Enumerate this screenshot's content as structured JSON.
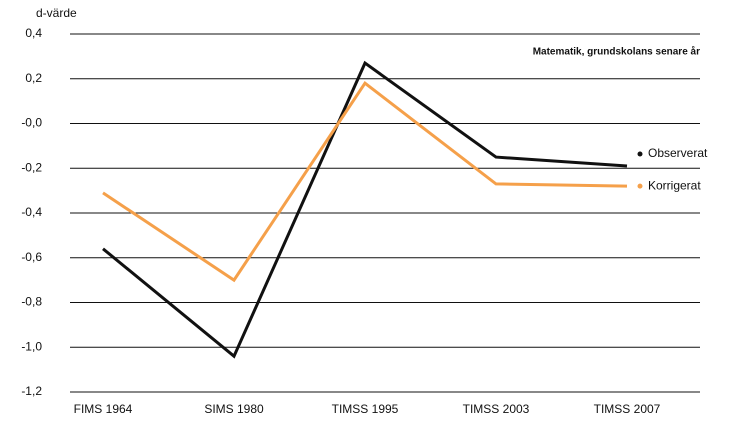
{
  "chart_data": {
    "type": "line",
    "y_label": "d-värde",
    "subtitle": "Matematik, grundskolans senare år",
    "categories": [
      "FIMS 1964",
      "SIMS 1980",
      "TIMSS 1995",
      "TIMSS 2003",
      "TIMSS 2007"
    ],
    "series": [
      {
        "name": "Observerat",
        "color": "#111111",
        "values": [
          -0.56,
          -1.04,
          0.27,
          -0.15,
          -0.19
        ]
      },
      {
        "name": "Korrigerat",
        "color": "#f5a04a",
        "values": [
          -0.31,
          -0.7,
          0.18,
          -0.27,
          -0.28
        ]
      }
    ],
    "ylim": [
      -1.2,
      0.4
    ],
    "yticks": [
      {
        "value": 0.4,
        "label": "0,4"
      },
      {
        "value": 0.2,
        "label": "0,2"
      },
      {
        "value": 0,
        "label": "-0,0"
      },
      {
        "value": -0.2,
        "label": "-0,2"
      },
      {
        "value": -0.4,
        "label": "-0,4"
      },
      {
        "value": -0.6,
        "label": "-0,6"
      },
      {
        "value": -0.8,
        "label": "-0,8"
      },
      {
        "value": -1.0,
        "label": "-1,0"
      },
      {
        "value": -1.2,
        "label": "-1,2"
      }
    ],
    "grid": true
  }
}
